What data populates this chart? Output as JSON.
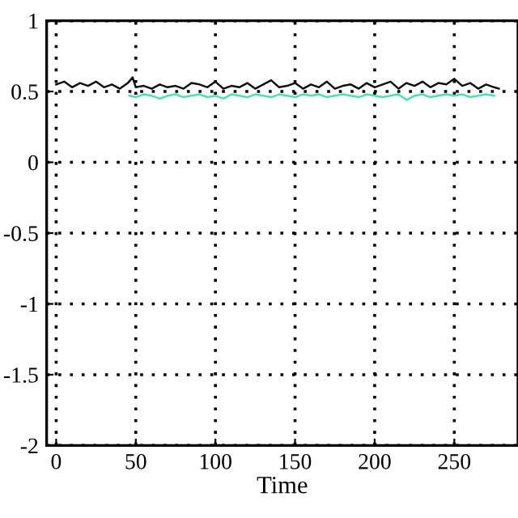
{
  "chart_data": {
    "type": "line",
    "xlabel": "Time",
    "xlim": [
      -6,
      290
    ],
    "ylim": [
      -2,
      1
    ],
    "xticks": [
      0,
      50,
      100,
      150,
      200,
      250
    ],
    "yticks": [
      -2,
      -1.5,
      -1,
      -0.5,
      0,
      0.5,
      1
    ],
    "grid": true,
    "marker": "none",
    "line_style": "solid",
    "series": [
      {
        "color": "#101010",
        "x": [
          0,
          5,
          10,
          15,
          20,
          25,
          30,
          35,
          40,
          45,
          48,
          50,
          55,
          60,
          65,
          70,
          75,
          80,
          85,
          90,
          95,
          100,
          105,
          110,
          115,
          120,
          125,
          130,
          135,
          140,
          145,
          150,
          155,
          160,
          165,
          170,
          175,
          180,
          185,
          190,
          195,
          200,
          205,
          210,
          215,
          220,
          225,
          230,
          235,
          240,
          245,
          250,
          255,
          260,
          265,
          270,
          275,
          278
        ],
        "values": [
          0.55,
          0.57,
          0.53,
          0.56,
          0.54,
          0.57,
          0.53,
          0.55,
          0.52,
          0.56,
          0.6,
          0.53,
          0.54,
          0.52,
          0.55,
          0.53,
          0.54,
          0.52,
          0.56,
          0.55,
          0.53,
          0.57,
          0.52,
          0.54,
          0.53,
          0.56,
          0.52,
          0.55,
          0.58,
          0.53,
          0.54,
          0.56,
          0.52,
          0.55,
          0.53,
          0.57,
          0.52,
          0.54,
          0.55,
          0.52,
          0.56,
          0.53,
          0.55,
          0.57,
          0.52,
          0.56,
          0.54,
          0.57,
          0.53,
          0.56,
          0.55,
          0.59,
          0.54,
          0.56,
          0.52,
          0.55,
          0.53,
          0.52
        ]
      },
      {
        "color": "#40e8a8",
        "x": [
          46,
          50,
          55,
          60,
          65,
          70,
          75,
          80,
          85,
          90,
          95,
          100,
          105,
          110,
          115,
          120,
          125,
          130,
          135,
          140,
          145,
          150,
          155,
          160,
          165,
          170,
          175,
          180,
          185,
          190,
          195,
          200,
          205,
          210,
          215,
          220,
          225,
          230,
          235,
          240,
          245,
          250,
          255,
          260,
          265,
          270,
          275
        ],
        "values": [
          0.47,
          0.46,
          0.48,
          0.47,
          0.45,
          0.47,
          0.48,
          0.46,
          0.47,
          0.48,
          0.46,
          0.47,
          0.45,
          0.48,
          0.47,
          0.46,
          0.48,
          0.47,
          0.46,
          0.48,
          0.47,
          0.46,
          0.48,
          0.47,
          0.48,
          0.46,
          0.47,
          0.48,
          0.47,
          0.46,
          0.48,
          0.47,
          0.46,
          0.47,
          0.48,
          0.44,
          0.47,
          0.48,
          0.46,
          0.47,
          0.48,
          0.47,
          0.48,
          0.46,
          0.47,
          0.48,
          0.47
        ]
      }
    ]
  }
}
